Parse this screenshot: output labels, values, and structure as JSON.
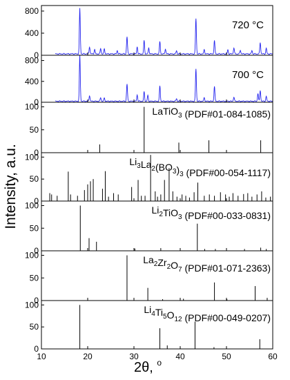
{
  "figure": {
    "ylabel": "Intensity, a.u.",
    "xlabel_main": "2θ, ",
    "xlabel_unit": "o",
    "xticks": [
      10,
      20,
      30,
      40,
      50,
      60
    ],
    "xlim": [
      10,
      60
    ]
  },
  "chart_data": [
    {
      "type": "line",
      "panel_label": "720 °C",
      "ylim": [
        0,
        900
      ],
      "yticks": [
        0,
        400,
        800
      ],
      "series_color": "#2222ee",
      "peaks": [
        {
          "x": 18.3,
          "y": 820
        },
        {
          "x": 20.4,
          "y": 130
        },
        {
          "x": 21.5,
          "y": 80
        },
        {
          "x": 22.8,
          "y": 100
        },
        {
          "x": 23.6,
          "y": 90
        },
        {
          "x": 26.4,
          "y": 60
        },
        {
          "x": 28.5,
          "y": 310
        },
        {
          "x": 30.7,
          "y": 130
        },
        {
          "x": 32.2,
          "y": 240
        },
        {
          "x": 33.2,
          "y": 110
        },
        {
          "x": 35.6,
          "y": 220
        },
        {
          "x": 36.8,
          "y": 90
        },
        {
          "x": 39.2,
          "y": 60
        },
        {
          "x": 43.4,
          "y": 640
        },
        {
          "x": 45.2,
          "y": 80
        },
        {
          "x": 47.4,
          "y": 240
        },
        {
          "x": 50.3,
          "y": 70
        },
        {
          "x": 51.6,
          "y": 110
        },
        {
          "x": 53.0,
          "y": 70
        },
        {
          "x": 55.5,
          "y": 60
        },
        {
          "x": 57.3,
          "y": 210
        },
        {
          "x": 58.6,
          "y": 100
        }
      ],
      "baseline": 25
    },
    {
      "type": "line",
      "panel_label": "700 °C",
      "ylim": [
        0,
        900
      ],
      "yticks": [
        0,
        400,
        800
      ],
      "series_color": "#2222ee",
      "peaks": [
        {
          "x": 18.3,
          "y": 880
        },
        {
          "x": 20.4,
          "y": 110
        },
        {
          "x": 22.8,
          "y": 70
        },
        {
          "x": 23.6,
          "y": 60
        },
        {
          "x": 28.5,
          "y": 330
        },
        {
          "x": 30.7,
          "y": 120
        },
        {
          "x": 32.2,
          "y": 180
        },
        {
          "x": 33.0,
          "y": 110
        },
        {
          "x": 35.6,
          "y": 290
        },
        {
          "x": 39.2,
          "y": 50
        },
        {
          "x": 43.4,
          "y": 620
        },
        {
          "x": 45.2,
          "y": 70
        },
        {
          "x": 47.4,
          "y": 280
        },
        {
          "x": 51.6,
          "y": 80
        },
        {
          "x": 56.8,
          "y": 150
        },
        {
          "x": 57.3,
          "y": 210
        },
        {
          "x": 58.6,
          "y": 90
        }
      ],
      "baseline": 20
    },
    {
      "type": "bar",
      "panel_label_parts": [
        [
          "La",
          false
        ],
        [
          "TiO",
          false
        ],
        [
          "3",
          true
        ],
        [
          " (PDF#01-084-1085)",
          false
        ]
      ],
      "ylim": [
        0,
        110
      ],
      "yticks": [
        0,
        50,
        100
      ],
      "x": [
        22.6,
        32.2,
        39.7,
        46.2,
        57.4
      ],
      "values": [
        18,
        100,
        22,
        27,
        27
      ]
    },
    {
      "type": "bar",
      "panel_label_parts": [
        [
          "Li",
          false
        ],
        [
          "3",
          true
        ],
        [
          "La",
          false
        ],
        [
          "2",
          true
        ],
        [
          "(BO",
          false
        ],
        [
          "3",
          true
        ],
        [
          ")",
          false
        ],
        [
          "3",
          true
        ],
        [
          " (PDF#00-054-1117)",
          false
        ]
      ],
      "ylim": [
        0,
        110
      ],
      "yticks": [
        0,
        50,
        100
      ],
      "x": [
        11.8,
        12.2,
        13.4,
        15.8,
        16.3,
        17.8,
        19.3,
        20.0,
        20.6,
        21.2,
        23.2,
        23.8,
        24.5,
        25.6,
        26.6,
        29.5,
        30.9,
        31.6,
        32.4,
        33.6,
        34.6,
        35.1,
        35.8,
        36.6,
        37.6,
        38.4,
        39.3,
        40.4,
        41.2,
        42.0,
        43.0,
        43.8,
        45.2,
        46.3,
        47.4,
        48.7,
        49.8,
        50.6,
        51.4,
        52.5,
        53.7,
        54.6,
        55.5,
        56.6,
        57.6,
        58.5,
        59.5
      ],
      "values": [
        18,
        15,
        12,
        67,
        15,
        12,
        25,
        38,
        45,
        50,
        28,
        68,
        10,
        18,
        15,
        32,
        48,
        12,
        12,
        105,
        22,
        10,
        15,
        48,
        75,
        22,
        10,
        15,
        12,
        8,
        20,
        42,
        12,
        15,
        12,
        20,
        15,
        10,
        18,
        12,
        16,
        18,
        10,
        15,
        22,
        8,
        10
      ]
    },
    {
      "type": "bar",
      "panel_label_parts": [
        [
          "Li",
          false
        ],
        [
          "2",
          true
        ],
        [
          "TiO",
          false
        ],
        [
          "3",
          true
        ],
        [
          " (PDF#00-033-0831)",
          false
        ]
      ],
      "ylim": [
        0,
        110
      ],
      "yticks": [
        0,
        50,
        100
      ],
      "x": [
        18.4,
        20.3,
        21.9,
        30.2,
        35.8,
        43.7,
        45.3,
        47.6,
        53.9,
        57.4,
        58.6
      ],
      "values": [
        100,
        28,
        20,
        5,
        6,
        60,
        4,
        4,
        4,
        7,
        4
      ]
    },
    {
      "type": "bar",
      "panel_label_parts": [
        [
          "La",
          false
        ],
        [
          "2",
          true
        ],
        [
          "Zr",
          false
        ],
        [
          "2",
          true
        ],
        [
          "O",
          false
        ],
        [
          "7",
          true
        ],
        [
          " (PDF#01-071-2363)",
          false
        ]
      ],
      "ylim": [
        0,
        110
      ],
      "yticks": [
        0,
        50,
        100
      ],
      "x": [
        28.5,
        33.0,
        36.2,
        40.7,
        47.4,
        50.1,
        56.2,
        58.8
      ],
      "values": [
        100,
        28,
        3,
        4,
        40,
        3,
        32,
        6
      ]
    },
    {
      "type": "bar",
      "panel_label_parts": [
        [
          "Li",
          false
        ],
        [
          "4",
          true
        ],
        [
          "Ti",
          false
        ],
        [
          "5",
          true
        ],
        [
          "O",
          false
        ],
        [
          "12",
          true
        ],
        [
          " (PDF#00-049-0207)",
          false
        ]
      ],
      "ylim": [
        0,
        110
      ],
      "yticks": [
        0,
        50,
        100
      ],
      "x": [
        18.3,
        35.6,
        37.2,
        43.2,
        47.3,
        57.2
      ],
      "values": [
        100,
        47,
        8,
        62,
        4,
        22
      ]
    }
  ]
}
